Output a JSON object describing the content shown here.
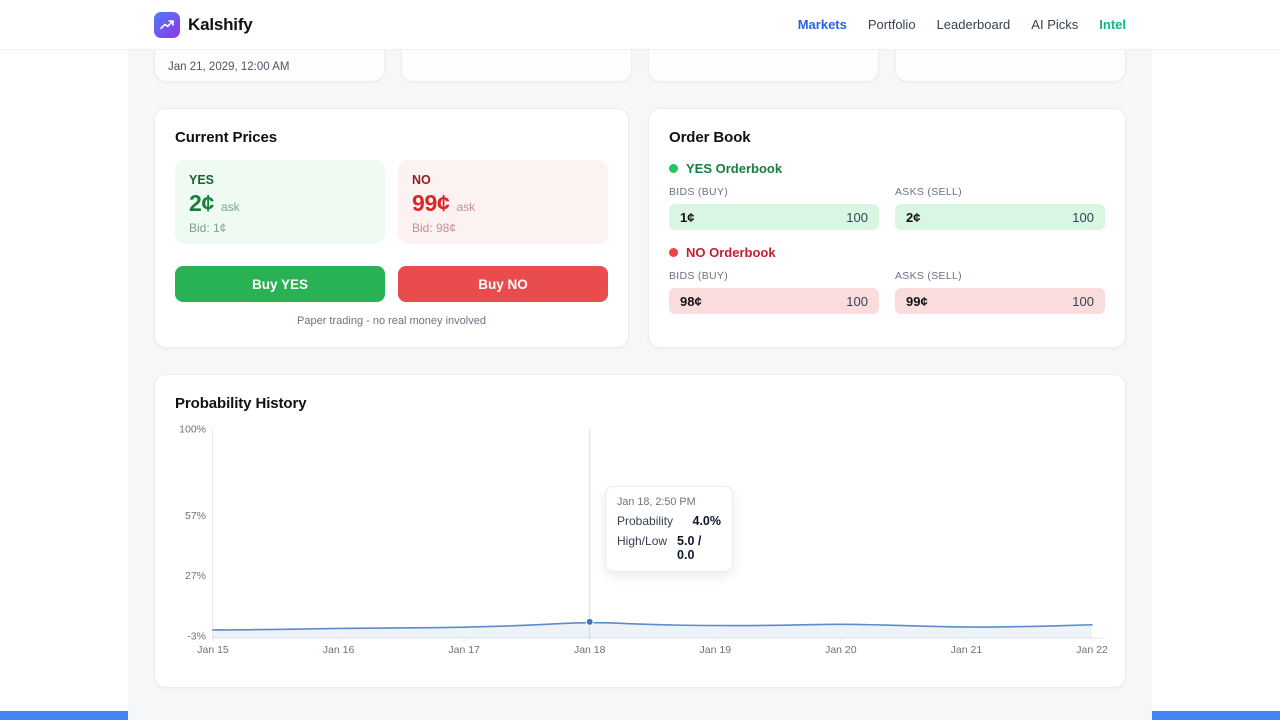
{
  "nav": {
    "brand": "Kalshify",
    "items": [
      {
        "label": "Markets",
        "active": true
      },
      {
        "label": "Portfolio"
      },
      {
        "label": "Leaderboard"
      },
      {
        "label": "AI Picks"
      },
      {
        "label": "Intel",
        "accent": true
      }
    ]
  },
  "top_cards": {
    "card1_text": "Jan 21, 2029, 12:00 AM"
  },
  "current_prices": {
    "title": "Current Prices",
    "yes": {
      "label": "YES",
      "ask_price": "2¢",
      "ask_suffix": "ask",
      "bid": "Bid: 1¢"
    },
    "no": {
      "label": "NO",
      "ask_price": "99¢",
      "ask_suffix": "ask",
      "bid": "Bid: 98¢"
    },
    "buy_yes_label": "Buy YES",
    "buy_no_label": "Buy NO",
    "disclaimer": "Paper trading - no real money involved"
  },
  "order_book": {
    "title": "Order Book",
    "yes_section": {
      "title": "YES Orderbook",
      "bids_label": "BIDS (BUY)",
      "asks_label": "ASKS (SELL)",
      "bids": [
        {
          "price": "1¢",
          "qty": "100"
        }
      ],
      "asks": [
        {
          "price": "2¢",
          "qty": "100"
        }
      ]
    },
    "no_section": {
      "title": "NO Orderbook",
      "bids_label": "BIDS (BUY)",
      "asks_label": "ASKS (SELL)",
      "bids": [
        {
          "price": "98¢",
          "qty": "100"
        }
      ],
      "asks": [
        {
          "price": "99¢",
          "qty": "100"
        }
      ]
    }
  },
  "chart": {
    "title": "Probability History",
    "tooltip": {
      "timestamp": "Jan 18, 2:50 PM",
      "probability_label": "Probability",
      "probability_value": "4.0%",
      "highlow_label": "High/Low",
      "highlow_value": "5.0 / 0.0"
    }
  },
  "chart_data": {
    "type": "line",
    "title": "Probability History",
    "series_name": "Probability",
    "x": [
      15,
      15.5,
      16,
      16.5,
      17,
      17.5,
      18,
      18.5,
      19,
      19.5,
      20,
      20.5,
      21,
      21.5,
      22
    ],
    "values": [
      0.0,
      0.2,
      0.8,
      1.0,
      1.3,
      2.3,
      4.0,
      2.6,
      2.1,
      2.3,
      3.0,
      2.2,
      1.3,
      1.7,
      2.6
    ],
    "x_ticks": [
      15,
      16,
      17,
      18,
      19,
      20,
      21,
      22
    ],
    "x_tick_labels": [
      "Jan 15",
      "Jan 16",
      "Jan 17",
      "Jan 18",
      "Jan 19",
      "Jan 20",
      "Jan 21",
      "Jan 22"
    ],
    "y_ticks": [
      100,
      57,
      27,
      -3
    ],
    "y_tick_labels": [
      "100%",
      "57%",
      "27%",
      "-3%"
    ],
    "xlim": [
      15,
      22
    ],
    "ylim": [
      -3,
      100
    ],
    "grid": false,
    "legend": false,
    "highlight": {
      "x": 18,
      "value": 4.0,
      "timestamp": "Jan 18, 2:50 PM",
      "high": 5.0,
      "low": 0.0
    }
  },
  "colors": {
    "brand-gradient-start": "#4e7cf6",
    "brand-gradient-end": "#9333ea",
    "nav-active": "#2563eb",
    "nav-intel": "#10b981",
    "yes-green": "#15803d",
    "yes-green-dark": "#166534",
    "yes-bg": "#eefaf2",
    "yes-row-bg": "#d9f6e3",
    "no-red": "#dc2626",
    "no-red-dark": "#991b1b",
    "no-bg": "#fdf2f2",
    "no-row-bg": "#fbdcdc",
    "buy-yes": "#28b254",
    "buy-no": "#e84c4c",
    "line-blue": "#5b8cce",
    "dot-blue": "#3f72b8",
    "bottom-bar": "#4285f4"
  }
}
